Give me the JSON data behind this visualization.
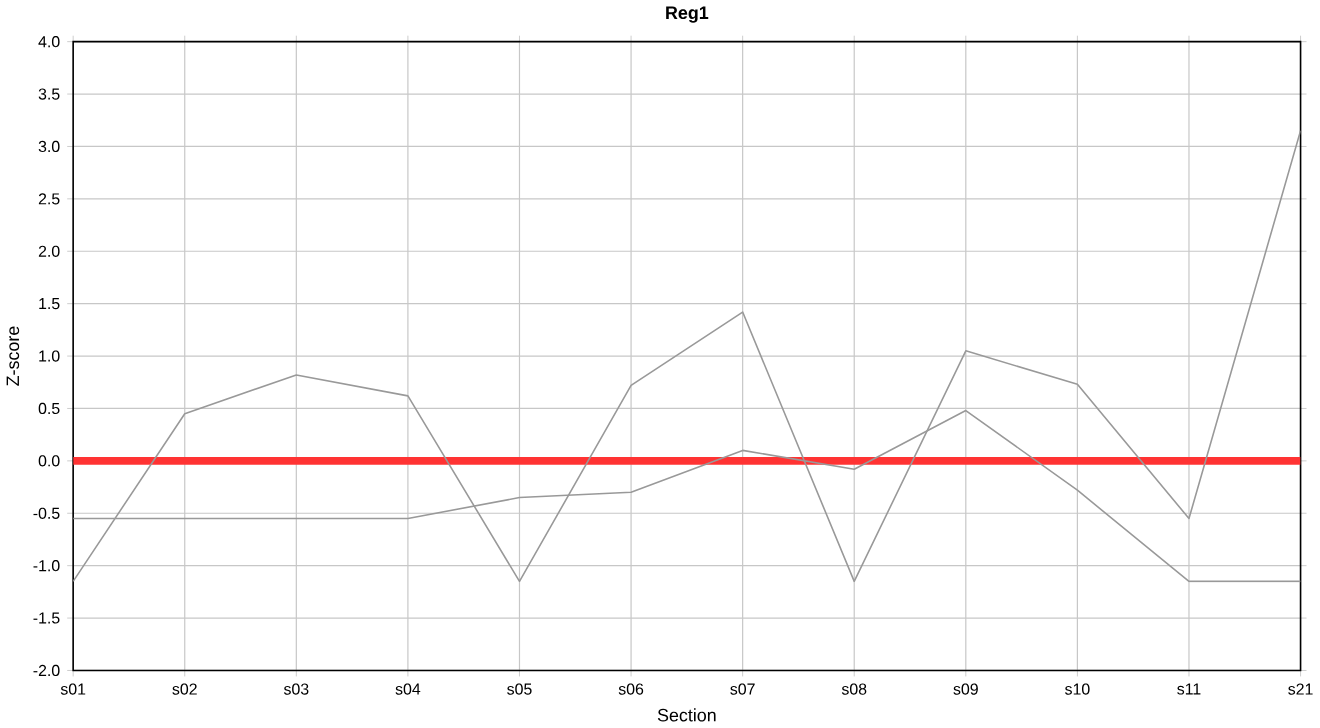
{
  "chart_data": {
    "type": "line",
    "title": "Reg1",
    "xlabel": "Section",
    "ylabel": "Z-score",
    "categories": [
      "s01",
      "s02",
      "s03",
      "s04",
      "s05",
      "s06",
      "s07",
      "s08",
      "s09",
      "s10",
      "s11",
      "s21"
    ],
    "series": [
      {
        "color": "#999999",
        "values": [
          -1.15,
          0.45,
          0.82,
          0.62,
          -1.15,
          0.72,
          1.42,
          -1.15,
          1.05,
          0.73,
          -0.55,
          3.15
        ]
      },
      {
        "color": "#999999",
        "values": [
          -0.55,
          -0.55,
          -0.55,
          -0.55,
          -0.35,
          -0.3,
          0.1,
          -0.08,
          0.48,
          -0.28,
          -1.15,
          -1.15
        ]
      }
    ],
    "ylim": [
      -2.0,
      4.0
    ],
    "yticks": [
      {
        "value": -2,
        "label": "-2.0"
      },
      {
        "value": -1.5,
        "label": "-1.5"
      },
      {
        "value": -1,
        "label": "-1.0"
      },
      {
        "value": -0.5,
        "label": "-0.5"
      },
      {
        "value": 0,
        "label": "0.0"
      },
      {
        "value": 0.5,
        "label": "0.5"
      },
      {
        "value": 1,
        "label": "1.0"
      },
      {
        "value": 1.5,
        "label": "1.5"
      },
      {
        "value": 2,
        "label": "2.0"
      },
      {
        "value": 2.5,
        "label": "2.5"
      },
      {
        "value": 3,
        "label": "3.0"
      },
      {
        "value": 3.5,
        "label": "3.5"
      },
      {
        "value": 4,
        "label": "4.0"
      }
    ],
    "ref_lines": [
      {
        "axis": "y",
        "value": 0,
        "color": "#ff3333"
      }
    ],
    "grid": true,
    "marker": "none",
    "line_style": "solid"
  }
}
